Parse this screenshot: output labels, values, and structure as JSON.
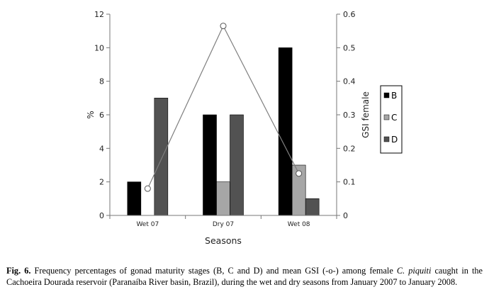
{
  "chart_data": {
    "type": "bar",
    "categories": [
      "Wet 07",
      "Dry 07",
      "Wet 08"
    ],
    "series": [
      {
        "name": "B",
        "values": [
          2,
          6,
          10
        ],
        "color": "#000000"
      },
      {
        "name": "C",
        "values": [
          0,
          2,
          3
        ],
        "color": "#a6a6a6"
      },
      {
        "name": "D",
        "values": [
          7,
          6,
          1
        ],
        "color": "#525252"
      }
    ],
    "line_series": {
      "values": [
        0.08,
        0.565,
        0.125
      ],
      "axis": "right",
      "color": "#7f7f7f"
    },
    "xlabel": "Seasons",
    "ylabel": "%",
    "y2label": "GSI female",
    "ylim": [
      0,
      12
    ],
    "y2lim": [
      0,
      0.6
    ],
    "yticks": [
      "0",
      "2",
      "4",
      "6",
      "8",
      "10",
      "12"
    ],
    "y2ticks": [
      "0",
      "0.1",
      "0.2",
      "0.3",
      "0.4",
      "0.5",
      "0.6"
    ],
    "grid": false,
    "legend_position": "right"
  },
  "caption": {
    "label": "Fig. 6.",
    "text_before_species": " Frequency percentages of gonad maturity stages (B, C and D) and mean GSI (-o-) among female ",
    "species": "C. piquiti",
    "text_after_species": " caught in the Cachoeira Dourada reservoir (Paranaíba River basin, Brazil), during the wet and dry seasons from January 2007 to January 2008."
  }
}
